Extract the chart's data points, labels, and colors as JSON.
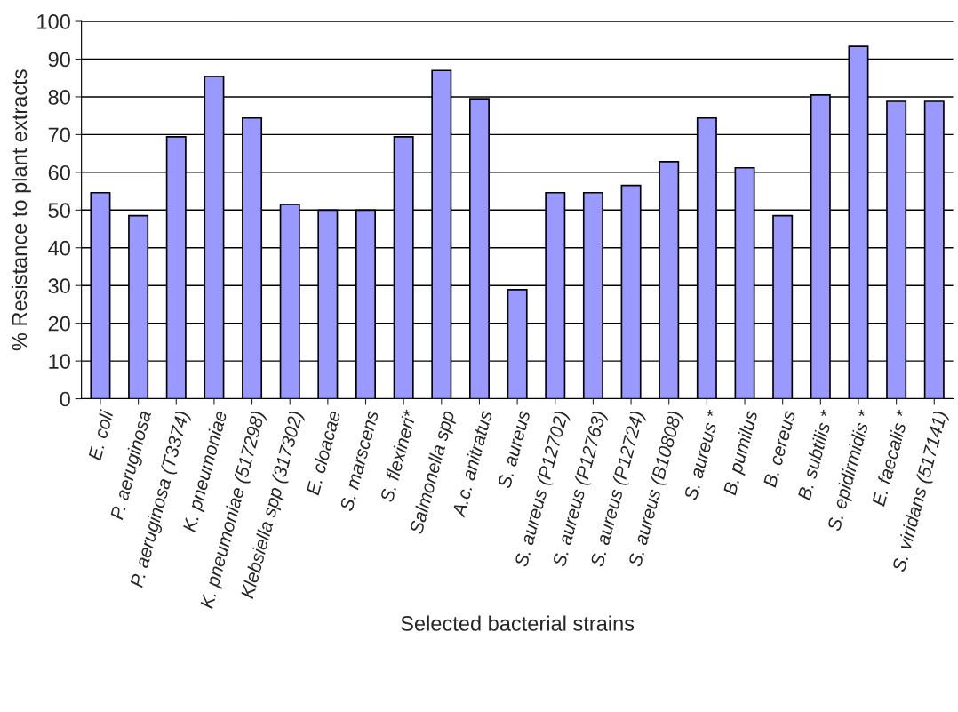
{
  "chart_data": {
    "type": "bar",
    "xlabel": "Selected bacterial strains",
    "ylabel": "% Resistance to plant extracts",
    "categories": [
      "E. coli",
      "P. aeruginosa",
      "P. aeruginosa (T3374)",
      "K. pneumoniae",
      "K. pneumoniae (517298)",
      "Klebsiella spp (317302)",
      "E. cloacae",
      "S. marscens",
      "S. flexineri*",
      "Salmonella spp",
      "A.c. anitratus",
      "S. aureus",
      "S. aureus (P12702)",
      "S. aureus (P12763)",
      "S. aureus (P12724)",
      "S. aureus (B10808)",
      "S. aureus *",
      "B. pumilus",
      "B. cereus",
      "B. subtilis *",
      "S. epidirmidis *",
      "E. faecalis *",
      "S. viridans (517141)"
    ],
    "values": [
      54.6,
      48.5,
      69.4,
      85.4,
      74.4,
      51.5,
      50,
      50,
      69.4,
      87,
      79.5,
      28.9,
      54.6,
      54.6,
      56.5,
      62.8,
      74.4,
      61.2,
      48.5,
      80.5,
      93.4,
      78.8,
      78.8
    ],
    "color": "#9999ff",
    "ylim": [
      0,
      100
    ],
    "yticks": [
      0,
      10,
      20,
      30,
      40,
      50,
      60,
      70,
      80,
      90,
      100
    ],
    "grid": "y"
  }
}
